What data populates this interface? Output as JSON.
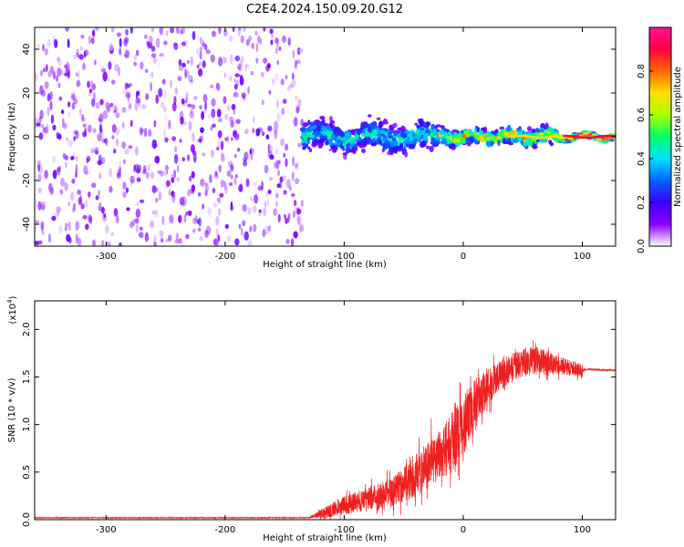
{
  "title": "C2E4.2024.150.09.20.G12",
  "chart_data": [
    {
      "type": "heatmap",
      "name": "spectrogram",
      "xlabel": "Height of straight line (km)",
      "ylabel": "Frequency (Hz)",
      "xlim": [
        -360,
        128
      ],
      "ylim": [
        -50,
        50
      ],
      "xticks": [
        -300,
        -200,
        -100,
        0,
        100
      ],
      "yticks": [
        -40,
        -20,
        0,
        20,
        40
      ],
      "colorbar": {
        "label": "Normalized spectral amplitude",
        "range": [
          0,
          1
        ],
        "ticks": [
          0.0,
          0.2,
          0.4,
          0.6,
          0.8
        ],
        "tick_labels": [
          "0.0",
          "0.2",
          "0.4",
          "0.6",
          "0.8"
        ],
        "colormap": [
          "#ffffff",
          "#8b00ff",
          "#3a00ff",
          "#0066ff",
          "#00e0ff",
          "#00ff66",
          "#aaff00",
          "#ffe000",
          "#ff6600",
          "#ff0040",
          "#ff1493"
        ]
      },
      "regions": [
        {
          "x": [
            -360,
            -135
          ],
          "freq_half_width": 50,
          "amplitude": 0.12,
          "description_level": "noise"
        },
        {
          "x": [
            -135,
            -20
          ],
          "freq_half_width": 9,
          "amplitude": 0.35
        },
        {
          "x": [
            -20,
            80
          ],
          "freq_half_width": 5,
          "amplitude": 0.55
        },
        {
          "x": [
            80,
            128
          ],
          "freq_half_width": 2,
          "amplitude": 0.85
        }
      ]
    },
    {
      "type": "line",
      "name": "snr",
      "xlabel": "Height of straight line (km)",
      "ylabel": "SNR (10 * v/v)",
      "yscale_label": "(x10",
      "yscale_exp": "4",
      "yscale_close": ")",
      "xlim": [
        -360,
        128
      ],
      "ylim": [
        0,
        2.3
      ],
      "xticks": [
        -300,
        -200,
        -100,
        0,
        100
      ],
      "yticks": [
        0.0,
        0.5,
        1.0,
        1.5,
        2.0
      ],
      "ytick_labels": [
        "0.0",
        "0.5",
        "1.0",
        "1.5",
        "2.0"
      ],
      "color": "#ee2020",
      "envelope": {
        "x": [
          -360,
          -130,
          -115,
          -100,
          -80,
          -60,
          -40,
          -20,
          -10,
          0,
          10,
          20,
          40,
          60,
          80,
          100,
          102,
          128
        ],
        "mean": [
          0.02,
          0.02,
          0.08,
          0.15,
          0.22,
          0.3,
          0.45,
          0.7,
          0.8,
          1.0,
          1.2,
          1.4,
          1.6,
          1.68,
          1.62,
          1.57,
          1.58,
          1.57
        ],
        "noise": [
          0.005,
          0.005,
          0.08,
          0.12,
          0.15,
          0.2,
          0.28,
          0.35,
          0.4,
          0.4,
          0.35,
          0.25,
          0.18,
          0.2,
          0.12,
          0.08,
          0.01,
          0.01
        ]
      }
    }
  ]
}
